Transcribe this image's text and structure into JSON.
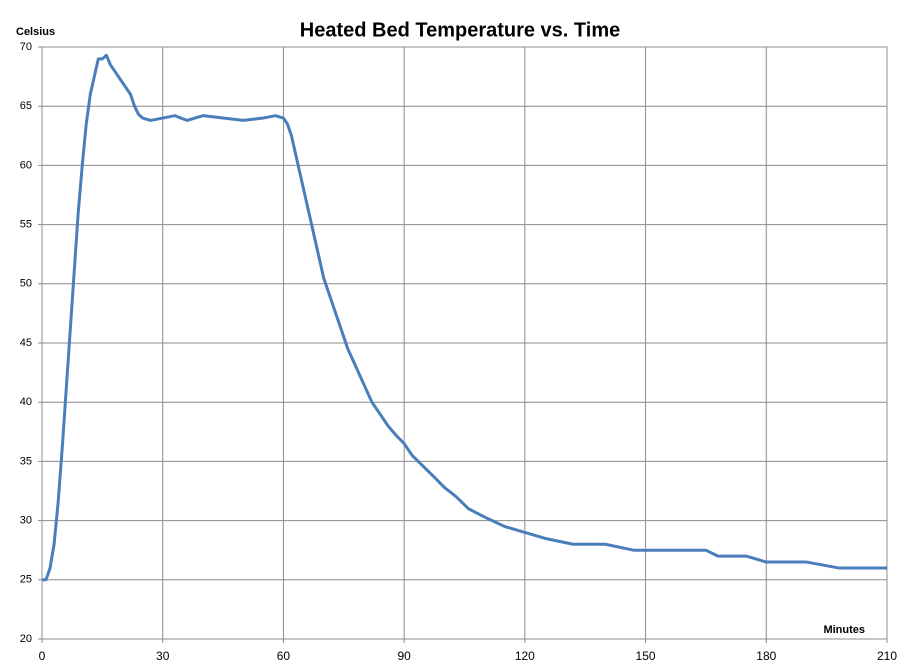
{
  "chart_data": {
    "type": "line",
    "title": "Heated Bed Temperature vs. Time",
    "y_label": "Celsius",
    "x_label": "Minutes",
    "color": "#4a7ebb",
    "grid": true,
    "xlim": [
      0,
      210
    ],
    "xticks": [
      0,
      30,
      60,
      90,
      120,
      150,
      180,
      210
    ],
    "ylim": [
      20,
      70
    ],
    "yticks": [
      20,
      25,
      30,
      35,
      40,
      45,
      50,
      55,
      60,
      65,
      70
    ],
    "x": [
      0,
      1,
      2,
      3,
      4,
      5,
      6,
      7,
      8,
      9,
      10,
      11,
      12,
      13,
      14,
      15,
      16,
      17,
      18,
      19,
      20,
      21,
      22,
      23,
      24,
      25,
      27,
      30,
      33,
      36,
      40,
      45,
      50,
      55,
      58,
      60,
      61,
      62,
      63,
      64,
      65,
      66,
      67,
      68,
      69,
      70,
      72,
      74,
      76,
      78,
      80,
      82,
      84,
      86,
      88,
      90,
      92,
      95,
      98,
      100,
      103,
      106,
      110,
      115,
      120,
      125,
      132,
      140,
      147,
      155,
      165,
      168,
      175,
      180,
      190,
      198,
      205,
      210
    ],
    "values": [
      25,
      25,
      26,
      28,
      31.5,
      36,
      41,
      46,
      51,
      56,
      60,
      63.5,
      66,
      67.5,
      69,
      69,
      69.3,
      68.5,
      68,
      67.5,
      67,
      66.5,
      66,
      65,
      64.3,
      64,
      63.8,
      64,
      64.2,
      63.8,
      64.2,
      64,
      63.8,
      64,
      64.2,
      64,
      63.5,
      62.5,
      61,
      59.5,
      58,
      56.5,
      55,
      53.5,
      52,
      50.5,
      48.5,
      46.5,
      44.5,
      43,
      41.5,
      40,
      39,
      38,
      37.2,
      36.5,
      35.5,
      34.5,
      33.5,
      32.8,
      32,
      31,
      30.3,
      29.5,
      29,
      28.5,
      28,
      28,
      27.5,
      27.5,
      27.5,
      27,
      27,
      26.5,
      26.5,
      26,
      26,
      26
    ]
  }
}
